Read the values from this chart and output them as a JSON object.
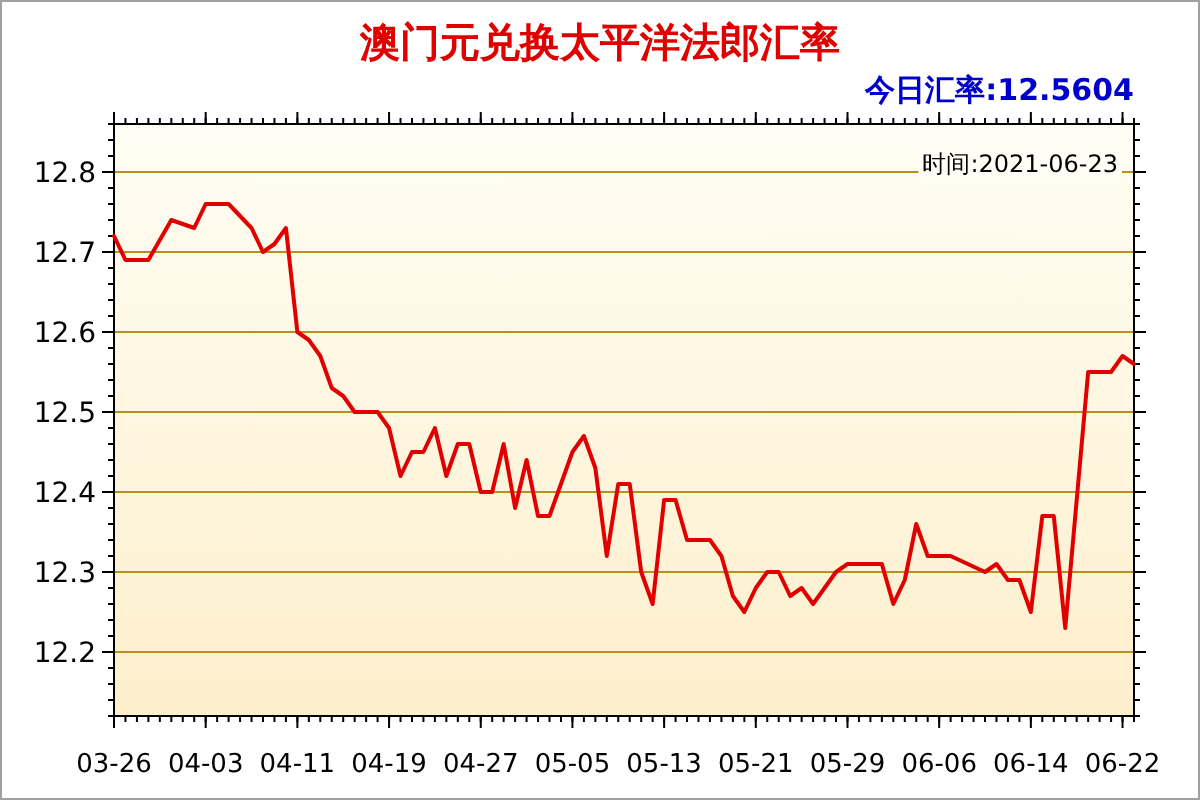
{
  "chart_data": {
    "type": "line",
    "title": "澳门元兑换太平洋法郎汇率",
    "annotations": [
      "今日汇率:12.5604",
      "时间:2021-06-23"
    ],
    "x": [
      "--03-26",
      "--03-27",
      "--03-29",
      "--03-31",
      "--04-02",
      "--04-03",
      "--04-05",
      "--04-07",
      "--04-08",
      "--04-09",
      "--04-10",
      "--04-11",
      "--04-12",
      "--04-13",
      "--04-14",
      "--04-15",
      "--04-16",
      "--04-17",
      "--04-18",
      "--04-19",
      "--04-20",
      "--04-21",
      "--04-22",
      "--04-23",
      "--04-24",
      "--04-25",
      "--04-26",
      "--04-27",
      "--04-28",
      "--04-29",
      "--04-30",
      "--05-01",
      "--05-02",
      "--05-03",
      "--05-04",
      "--05-05",
      "--05-06",
      "--05-07",
      "--05-08",
      "--05-09",
      "--05-10",
      "--05-11",
      "--05-12",
      "--05-13",
      "--05-14",
      "--05-15",
      "--05-17",
      "--05-18",
      "--05-19",
      "--05-20",
      "--05-21",
      "--05-22",
      "--05-23",
      "--05-24",
      "--05-25",
      "--05-26",
      "--05-28",
      "--05-29",
      "--06-01",
      "--06-02",
      "--06-03",
      "--06-04",
      "--06-05",
      "--06-06",
      "--06-07",
      "--06-10",
      "--06-11",
      "--06-12",
      "--06-13",
      "--06-14",
      "--06-15",
      "--06-16",
      "--06-17",
      "--06-18",
      "--06-19",
      "--06-21",
      "--06-22",
      "--06-23"
    ],
    "series": [
      {
        "color": "#e00000",
        "values": [
          12.72,
          12.69,
          12.69,
          12.74,
          12.73,
          12.76,
          12.76,
          12.73,
          12.7,
          12.71,
          12.73,
          12.6,
          12.59,
          12.57,
          12.53,
          12.52,
          12.5,
          12.5,
          12.5,
          12.48,
          12.42,
          12.45,
          12.45,
          12.48,
          12.42,
          12.46,
          12.46,
          12.4,
          12.4,
          12.46,
          12.38,
          12.44,
          12.37,
          12.37,
          12.41,
          12.45,
          12.47,
          12.43,
          12.32,
          12.41,
          12.41,
          12.3,
          12.26,
          12.39,
          12.39,
          12.34,
          12.34,
          12.32,
          12.27,
          12.25,
          12.28,
          12.3,
          12.3,
          12.27,
          12.28,
          12.26,
          12.3,
          12.31,
          12.31,
          12.26,
          12.29,
          12.36,
          12.32,
          12.32,
          12.32,
          12.3,
          12.31,
          12.29,
          12.29,
          12.25,
          12.37,
          12.37,
          12.23,
          12.39,
          12.55,
          12.55,
          12.57,
          12.56
        ]
      }
    ],
    "xlim": [
      "--03-26",
      "--06-23"
    ],
    "xticks": [
      {
        "value": "--03-26",
        "label": "03-26"
      },
      {
        "value": "--04-03",
        "label": "04-03"
      },
      {
        "value": "--04-11",
        "label": "04-11"
      },
      {
        "value": "--04-19",
        "label": "04-19"
      },
      {
        "value": "--04-27",
        "label": "04-27"
      },
      {
        "value": "--05-05",
        "label": "05-05"
      },
      {
        "value": "--05-13",
        "label": "05-13"
      },
      {
        "value": "--05-21",
        "label": "05-21"
      },
      {
        "value": "--05-29",
        "label": "05-29"
      },
      {
        "value": "--06-06",
        "label": "06-06"
      },
      {
        "value": "--06-14",
        "label": "06-14"
      },
      {
        "value": "--06-22",
        "label": "06-22"
      }
    ],
    "ylim": [
      12.12,
      12.86
    ],
    "yticks": [
      12.2,
      12.3,
      12.4,
      12.5,
      12.6,
      12.7,
      12.8
    ],
    "grid": "y",
    "line_style": "solid"
  }
}
